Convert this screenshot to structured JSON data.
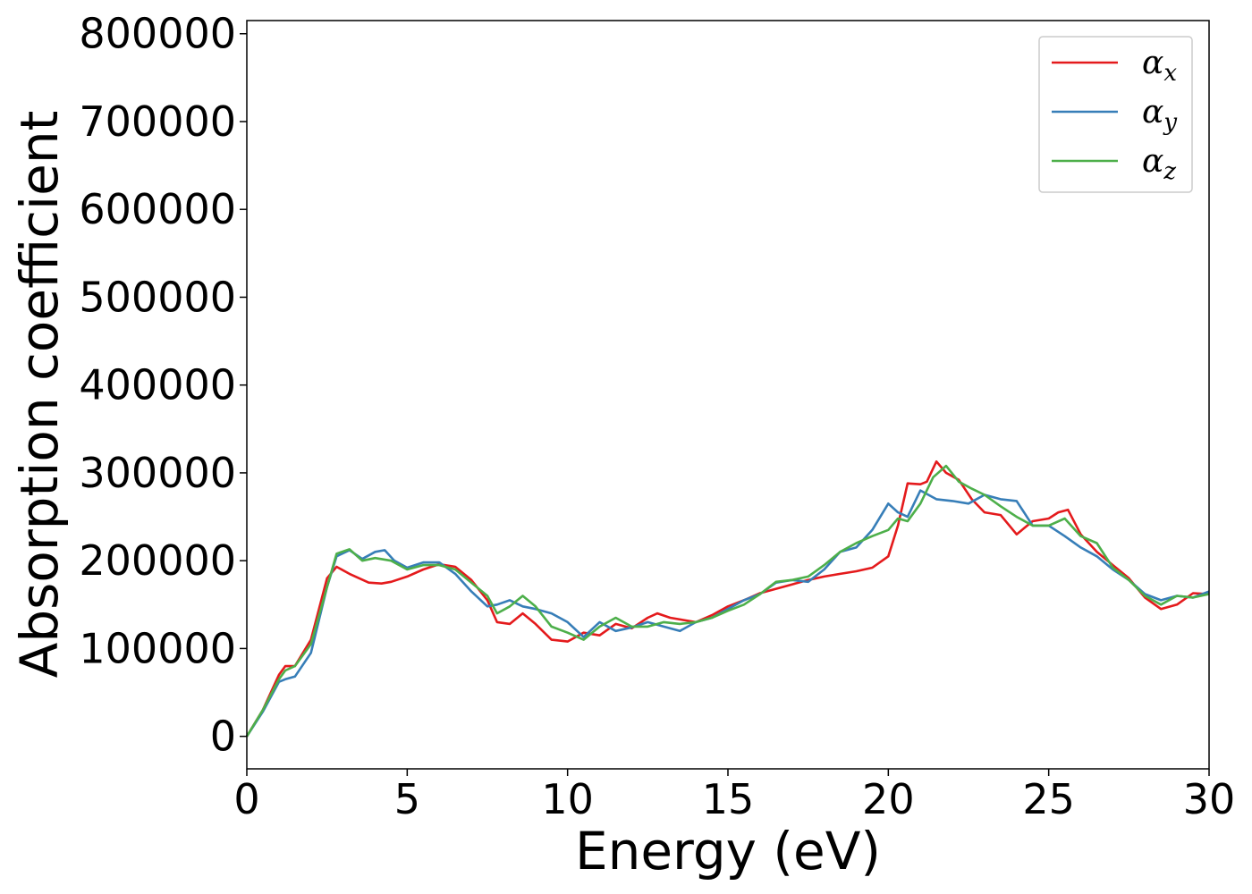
{
  "chart_data": {
    "type": "line",
    "xlabel": "Energy (eV)",
    "ylabel": "Absorption coefficient",
    "xlim": [
      0,
      30
    ],
    "ylim": [
      -37000,
      815000
    ],
    "x_ticks": [
      0,
      5,
      10,
      15,
      20,
      25,
      30
    ],
    "y_ticks": [
      0,
      100000,
      200000,
      300000,
      400000,
      500000,
      600000,
      700000,
      800000
    ],
    "grid": false,
    "legend_position": "top-right",
    "series": [
      {
        "name": "αx",
        "name_base": "α",
        "name_sub": "x",
        "color": "#e41a1c",
        "x": [
          0,
          0.5,
          1.0,
          1.2,
          1.5,
          2.0,
          2.5,
          2.8,
          3.2,
          3.8,
          4.2,
          4.5,
          5.0,
          5.5,
          6.0,
          6.5,
          7.0,
          7.5,
          7.8,
          8.2,
          8.6,
          9.0,
          9.5,
          10.0,
          10.5,
          11.0,
          11.5,
          12.0,
          12.5,
          12.8,
          13.2,
          14.0,
          14.5,
          15.0,
          15.5,
          16.0,
          16.5,
          17.0,
          17.5,
          18.0,
          18.5,
          19.0,
          19.5,
          20.0,
          20.3,
          20.6,
          21.0,
          21.2,
          21.5,
          21.8,
          22.2,
          22.6,
          23.0,
          23.5,
          24.0,
          24.5,
          25.0,
          25.3,
          25.6,
          26.0,
          26.5,
          27.0,
          27.5,
          28.0,
          28.5,
          29.0,
          29.5,
          30.0
        ],
        "y": [
          0,
          30000,
          70000,
          80000,
          80000,
          110000,
          180000,
          193000,
          185000,
          175000,
          174000,
          176000,
          182000,
          190000,
          196000,
          193000,
          178000,
          155000,
          130000,
          128000,
          140000,
          128000,
          110000,
          108000,
          118000,
          115000,
          128000,
          123000,
          135000,
          140000,
          135000,
          130000,
          138000,
          148000,
          155000,
          163000,
          168000,
          173000,
          178000,
          182000,
          185000,
          188000,
          192000,
          205000,
          240000,
          288000,
          287000,
          290000,
          313000,
          300000,
          292000,
          270000,
          255000,
          252000,
          230000,
          245000,
          248000,
          255000,
          258000,
          230000,
          210000,
          195000,
          180000,
          158000,
          145000,
          150000,
          163000,
          162000
        ]
      },
      {
        "name": "αy",
        "name_base": "α",
        "name_sub": "y",
        "color": "#377eb8",
        "x": [
          0,
          0.5,
          1.0,
          1.2,
          1.5,
          2.0,
          2.5,
          2.8,
          3.2,
          3.6,
          4.0,
          4.3,
          4.6,
          5.0,
          5.5,
          6.0,
          6.5,
          7.0,
          7.5,
          7.8,
          8.2,
          8.6,
          9.0,
          9.5,
          10.0,
          10.5,
          11.0,
          11.5,
          12.0,
          12.5,
          13.0,
          13.5,
          14.0,
          14.5,
          15.0,
          15.5,
          16.0,
          16.5,
          17.0,
          17.5,
          18.0,
          18.5,
          19.0,
          19.5,
          20.0,
          20.3,
          20.6,
          21.0,
          21.5,
          22.0,
          22.5,
          23.0,
          23.5,
          24.0,
          24.5,
          25.0,
          25.5,
          26.0,
          26.5,
          27.0,
          27.5,
          28.0,
          28.5,
          29.0,
          29.5,
          30.0
        ],
        "y": [
          0,
          28000,
          62000,
          65000,
          68000,
          95000,
          170000,
          205000,
          212000,
          202000,
          210000,
          212000,
          200000,
          192000,
          198000,
          198000,
          185000,
          165000,
          148000,
          150000,
          155000,
          148000,
          145000,
          140000,
          130000,
          113000,
          130000,
          120000,
          124000,
          130000,
          125000,
          120000,
          130000,
          135000,
          145000,
          155000,
          162000,
          175000,
          178000,
          176000,
          190000,
          210000,
          215000,
          235000,
          265000,
          255000,
          250000,
          280000,
          270000,
          268000,
          265000,
          275000,
          270000,
          268000,
          240000,
          240000,
          228000,
          215000,
          205000,
          190000,
          178000,
          162000,
          155000,
          160000,
          158000,
          165000
        ]
      },
      {
        "name": "αz",
        "name_base": "α",
        "name_sub": "z",
        "color": "#4daf4a",
        "x": [
          0,
          0.5,
          1.0,
          1.2,
          1.5,
          2.0,
          2.5,
          2.8,
          3.2,
          3.6,
          4.0,
          4.5,
          5.0,
          5.5,
          6.0,
          6.5,
          7.0,
          7.5,
          7.8,
          8.2,
          8.6,
          9.0,
          9.5,
          10.0,
          10.5,
          11.0,
          11.5,
          12.0,
          12.5,
          13.0,
          13.5,
          14.0,
          14.5,
          15.0,
          15.5,
          16.0,
          16.5,
          17.0,
          17.5,
          18.0,
          18.5,
          19.0,
          19.5,
          20.0,
          20.3,
          20.6,
          21.0,
          21.4,
          21.8,
          22.2,
          22.6,
          23.0,
          23.5,
          24.0,
          24.5,
          25.0,
          25.5,
          26.0,
          26.5,
          27.0,
          27.5,
          28.0,
          28.5,
          29.0,
          29.5,
          30.0
        ],
        "y": [
          0,
          30000,
          65000,
          75000,
          80000,
          105000,
          170000,
          208000,
          213000,
          200000,
          203000,
          200000,
          190000,
          195000,
          195000,
          190000,
          175000,
          160000,
          140000,
          148000,
          160000,
          148000,
          125000,
          118000,
          110000,
          125000,
          135000,
          125000,
          125000,
          130000,
          128000,
          130000,
          135000,
          143000,
          150000,
          162000,
          176000,
          178000,
          182000,
          195000,
          210000,
          220000,
          228000,
          235000,
          248000,
          245000,
          265000,
          295000,
          308000,
          290000,
          282000,
          275000,
          262000,
          250000,
          240000,
          240000,
          248000,
          228000,
          220000,
          192000,
          178000,
          160000,
          150000,
          160000,
          158000,
          162000
        ]
      }
    ]
  }
}
